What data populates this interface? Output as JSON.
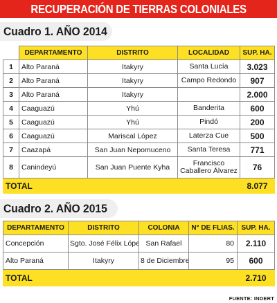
{
  "title": "RECUPERACIÓN DE TIERRAS COLONIALES",
  "table1": {
    "heading": "Cuadro 1. AÑO 2014",
    "columns": [
      "DEPARTAMENTO",
      "DISTRITO",
      "LOCALIDAD",
      "SUP. HA."
    ],
    "rows": [
      {
        "num": "1",
        "departamento": "Alto Paraná",
        "distrito": "Itakyry",
        "localidad": "Santa Lucía",
        "sup": "3.023"
      },
      {
        "num": "2",
        "departamento": "Alto Paraná",
        "distrito": "Itakyry",
        "localidad": "Campo Redondo",
        "sup": "907"
      },
      {
        "num": "3",
        "departamento": "Alto Paraná",
        "distrito": "Itakyry",
        "localidad": "",
        "sup": "2.000"
      },
      {
        "num": "4",
        "departamento": "Caaguazú",
        "distrito": "Yhú",
        "localidad": "Banderita",
        "sup": "600"
      },
      {
        "num": "5",
        "departamento": "Caaguazú",
        "distrito": "Yhú",
        "localidad": "Pindó",
        "sup": "200"
      },
      {
        "num": "6",
        "departamento": "Caaguazú",
        "distrito": "Mariscal López",
        "localidad": "Laterza Cue",
        "sup": "500"
      },
      {
        "num": "7",
        "departamento": "Caazapá",
        "distrito": "San Juan Nepomuceno",
        "localidad": "Santa Teresa",
        "sup": "771"
      },
      {
        "num": "8",
        "departamento": "Canindeyú",
        "distrito": "San Juan Puente Kyha",
        "localidad": "Francisco Caballero Álvarez",
        "sup": "76"
      }
    ],
    "total_label": "TOTAL",
    "total_value": "8.077"
  },
  "table2": {
    "heading": "Cuadro 2. AÑO 2015",
    "columns": [
      "DEPARTAMENTO",
      "DISTRITO",
      "COLONIA",
      "N° DE FLIAS.",
      "SUP. HA."
    ],
    "rows": [
      {
        "departamento": "Concepción",
        "distrito": "Sgto. José Félix López",
        "colonia": "San Rafael",
        "flias": "80",
        "sup": "2.110"
      },
      {
        "departamento": "Alto Paraná",
        "distrito": "Itakyry",
        "colonia": "8 de Diciembre",
        "flias": "95",
        "sup": "600"
      }
    ],
    "total_label": "TOTAL",
    "total_value": "2.710"
  },
  "source": "FUENTE: INDERT"
}
